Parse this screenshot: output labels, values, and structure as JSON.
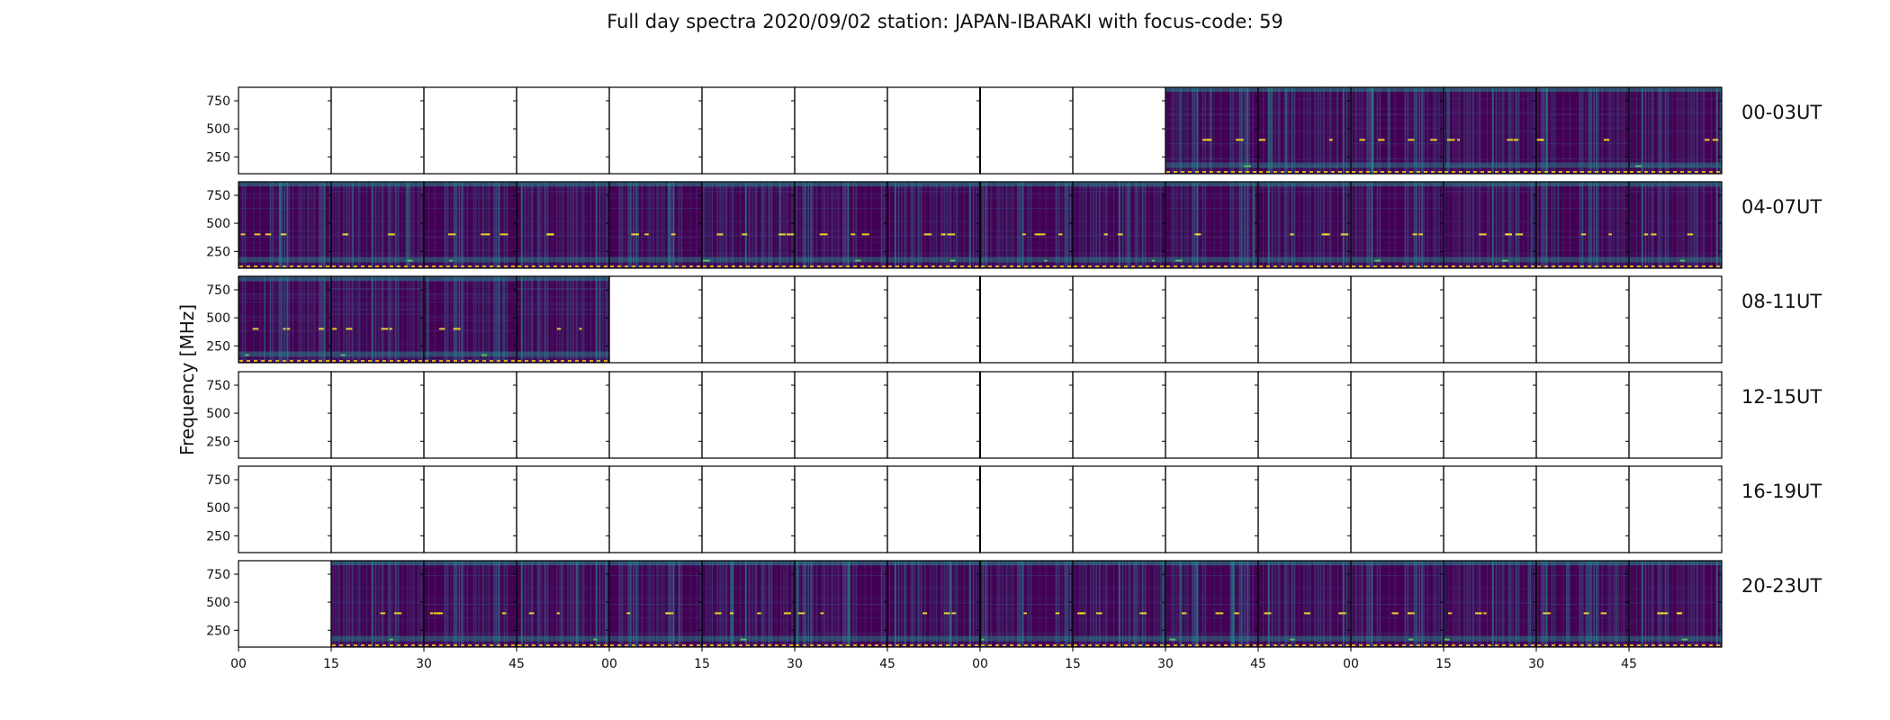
{
  "chart_data": {
    "type": "heatmap",
    "title": "Full day spectra 2020/09/02 station: JAPAN-IBARAKI with focus-code: 59",
    "ylabel": "Frequency [MHz]",
    "xlabel": "",
    "ylim": [
      100,
      870
    ],
    "y_ticks": [
      250,
      500,
      750
    ],
    "x_tick_labels": [
      "00",
      "15",
      "30",
      "45",
      "00",
      "15",
      "30",
      "45",
      "00",
      "15",
      "30",
      "45",
      "00",
      "15",
      "30",
      "45"
    ],
    "minutes_per_panel": 15,
    "panels_per_row": 16,
    "rows": [
      {
        "label": "00-03UT",
        "has_data": [
          false,
          false,
          false,
          false,
          false,
          false,
          false,
          false,
          false,
          false,
          true,
          true,
          true,
          true,
          true,
          true
        ]
      },
      {
        "label": "04-07UT",
        "has_data": [
          true,
          true,
          true,
          true,
          true,
          true,
          true,
          true,
          true,
          true,
          true,
          true,
          true,
          true,
          true,
          true
        ]
      },
      {
        "label": "08-11UT",
        "has_data": [
          true,
          true,
          true,
          true,
          false,
          false,
          false,
          false,
          false,
          false,
          false,
          false,
          false,
          false,
          false,
          false
        ]
      },
      {
        "label": "12-15UT",
        "has_data": [
          false,
          false,
          false,
          false,
          false,
          false,
          false,
          false,
          false,
          false,
          false,
          false,
          false,
          false,
          false,
          false
        ]
      },
      {
        "label": "16-19UT",
        "has_data": [
          false,
          false,
          false,
          false,
          false,
          false,
          false,
          false,
          false,
          false,
          false,
          false,
          false,
          false,
          false,
          false
        ]
      },
      {
        "label": "20-23UT",
        "has_data": [
          false,
          true,
          true,
          true,
          true,
          true,
          true,
          true,
          true,
          true,
          true,
          true,
          true,
          true,
          true,
          true
        ]
      }
    ],
    "colormap": "viridis",
    "colors": {
      "low": "#440154",
      "mid1": "#3b528b",
      "mid2": "#21918c",
      "mid3": "#5ec962",
      "high": "#fde725"
    }
  }
}
